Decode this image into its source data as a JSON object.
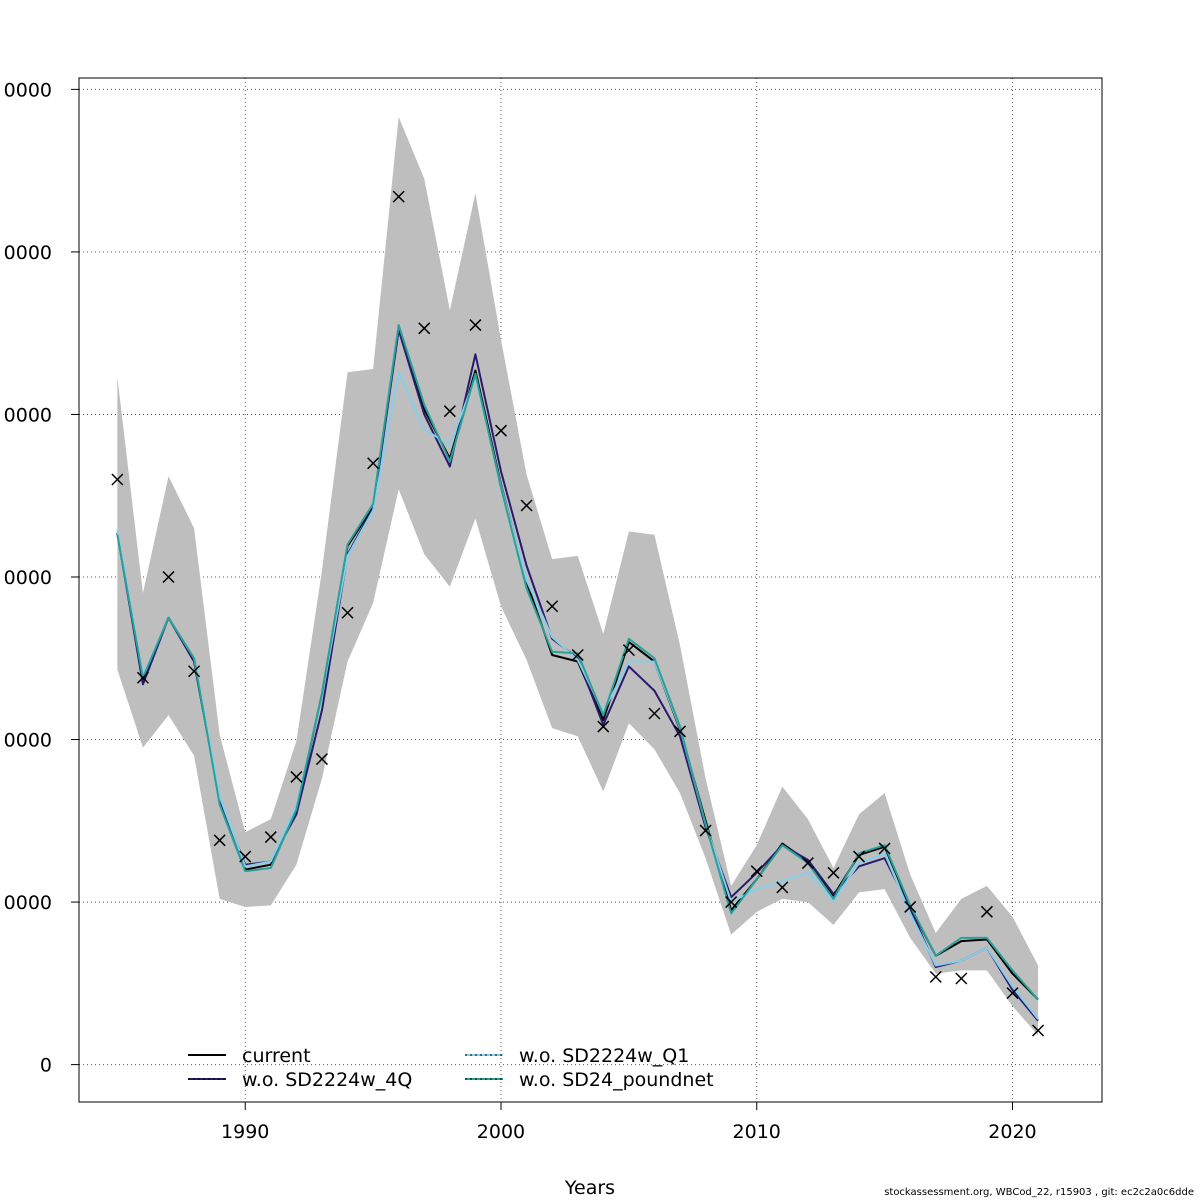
{
  "chart_data": {
    "type": "line",
    "title": "",
    "xlabel": "Years",
    "ylabel": "",
    "xlim": [
      1983.5,
      2023.5
    ],
    "ylim": [
      -2300,
      60700
    ],
    "xticks": [
      1990,
      2000,
      2010,
      2020
    ],
    "yticks": [
      {
        "value": 0,
        "label": "0"
      },
      {
        "value": 10000,
        "label": "0000"
      },
      {
        "value": 20000,
        "label": "0000"
      },
      {
        "value": 30000,
        "label": "0000"
      },
      {
        "value": 40000,
        "label": "0000"
      },
      {
        "value": 50000,
        "label": "0000"
      },
      {
        "value": 60000,
        "label": "0000"
      }
    ],
    "grid": true,
    "x": [
      1985,
      1986,
      1987,
      1988,
      1989,
      1990,
      1991,
      1992,
      1993,
      1994,
      1995,
      1996,
      1997,
      1998,
      1999,
      2000,
      2001,
      2002,
      2003,
      2004,
      2005,
      2006,
      2007,
      2008,
      2009,
      2010,
      2011,
      2012,
      2013,
      2014,
      2015,
      2016,
      2017,
      2018,
      2019,
      2020,
      2021
    ],
    "band": {
      "upper": [
        42300,
        29000,
        36200,
        33000,
        20300,
        14300,
        15100,
        19900,
        30400,
        42600,
        42800,
        58300,
        54500,
        46400,
        53600,
        44600,
        36300,
        31100,
        31300,
        26500,
        32800,
        32600,
        25800,
        17600,
        11000,
        13500,
        17100,
        15100,
        12100,
        15400,
        16700,
        11700,
        8100,
        10200,
        11000,
        9100,
        6100
      ],
      "lower": [
        24300,
        19500,
        21500,
        19000,
        10200,
        9700,
        9800,
        12300,
        17600,
        24800,
        28400,
        35400,
        31400,
        29400,
        33600,
        28200,
        24900,
        20700,
        20200,
        16800,
        21000,
        19400,
        16700,
        12700,
        8000,
        9400,
        10200,
        10000,
        8600,
        10600,
        10800,
        7800,
        5600,
        5800,
        5800,
        3600,
        1800
      ]
    },
    "series": [
      {
        "name": "current",
        "color": "#000000",
        "dash": "",
        "values": [
          32700,
          23700,
          27500,
          24800,
          16300,
          12000,
          12300,
          15600,
          22800,
          31900,
          34300,
          45300,
          40300,
          37300,
          42700,
          35700,
          29700,
          25200,
          24800,
          21200,
          26000,
          24800,
          20600,
          15000,
          9500,
          11400,
          13600,
          12500,
          10400,
          12900,
          13400,
          9700,
          6700,
          7600,
          7700,
          5600,
          4000
        ]
      },
      {
        "name": "w.o. SD2224w_4Q",
        "color": "#2a1a6e",
        "dash": "",
        "values": [
          32700,
          23400,
          27500,
          24800,
          16300,
          12300,
          12500,
          15400,
          21800,
          31400,
          34200,
          45200,
          40000,
          36800,
          43700,
          36500,
          30700,
          26200,
          25000,
          20900,
          24500,
          23000,
          20200,
          14600,
          10300,
          11800,
          13500,
          12600,
          10500,
          12200,
          12700,
          9600,
          6000,
          6400,
          7200,
          4600,
          2700
        ]
      },
      {
        "name": "w.o. SD2224w_Q1",
        "color": "#87ceeb",
        "dash": "",
        "values": [
          32900,
          23900,
          27500,
          25000,
          16500,
          12200,
          12500,
          15900,
          22700,
          31300,
          34100,
          42600,
          39100,
          38100,
          42300,
          35600,
          29800,
          26300,
          24900,
          21700,
          24800,
          24800,
          20700,
          14800,
          10000,
          10800,
          11300,
          11800,
          10100,
          12400,
          13000,
          9300,
          6100,
          6400,
          7200,
          4800,
          2800
        ]
      },
      {
        "name": "w.o. SD24_poundnet",
        "color": "#2aa198",
        "dash": "",
        "values": [
          32600,
          23800,
          27500,
          25000,
          16000,
          11900,
          12100,
          15700,
          22800,
          32000,
          34500,
          45500,
          40600,
          37100,
          42500,
          35500,
          29300,
          25400,
          25300,
          21500,
          26200,
          25000,
          20800,
          14800,
          9300,
          11400,
          13500,
          12400,
          10200,
          13000,
          13500,
          9800,
          6700,
          7800,
          7800,
          5800,
          4000
        ]
      }
    ],
    "observations": [
      36000,
      23800,
      30000,
      24200,
      13800,
      12800,
      14000,
      17700,
      18800,
      27800,
      37000,
      53400,
      45300,
      40200,
      45500,
      39000,
      34400,
      28200,
      25200,
      20800,
      25500,
      21600,
      20500,
      14400,
      10000,
      11900,
      10900,
      12400,
      11800,
      12800,
      13300,
      9700,
      5400,
      5300,
      9400,
      4400,
      2100
    ],
    "legend": {
      "placement": "bottom-left",
      "columns": 2,
      "entries": [
        "current",
        "w.o. SD2224w_4Q",
        "w.o. SD2224w_Q1",
        "w.o. SD24_poundnet"
      ]
    },
    "footnote": "stockassessment.org, WBCod_22, r15903 , git: ec2c2a0c6dde"
  }
}
